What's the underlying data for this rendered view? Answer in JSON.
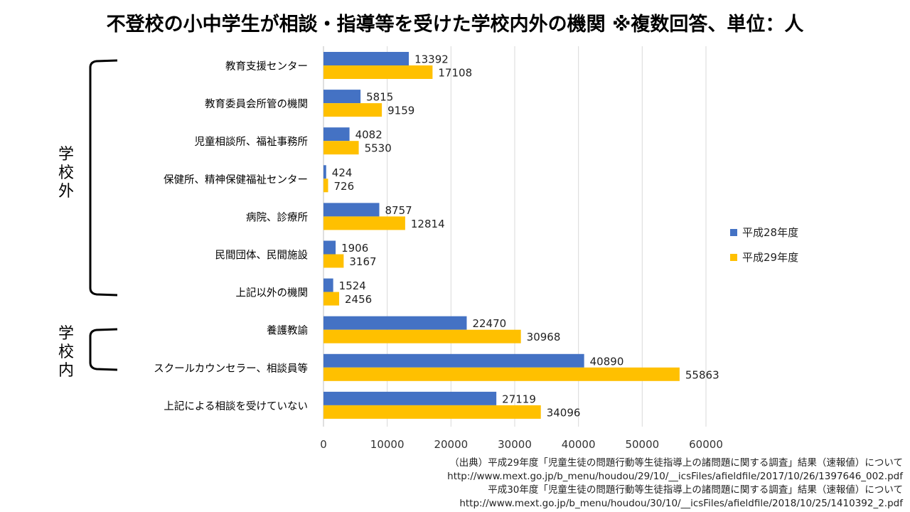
{
  "title": "不登校の小中学生が相談・指導等を受けた学校内外の機関 ※複数回答、単位：人",
  "chart_data": {
    "type": "bar",
    "orientation": "horizontal",
    "title": "不登校の小中学生が相談・指導等を受けた学校内外の機関 ※複数回答、単位：人",
    "xlabel": "",
    "ylabel": "",
    "xlim": [
      0,
      60000
    ],
    "xticks": [
      0,
      10000,
      20000,
      30000,
      40000,
      50000,
      60000
    ],
    "xtick_labels": [
      "0",
      "10000",
      "20000",
      "30000",
      "40000",
      "50000",
      "60000"
    ],
    "grid": "vertical",
    "legend_position": "right",
    "categories": [
      "教育支援センター",
      "教育委員会所管の機関",
      "児童相談所、福祉事務所",
      "保健所、精神保健福祉センター",
      "病院、診療所",
      "民間団体、民間施設",
      "上記以外の機関",
      "養護教諭",
      "スクールカウンセラー、相談員等",
      "上記による相談を受けていない"
    ],
    "series": [
      {
        "name": "平成28年度",
        "color": "#4472C4",
        "values": [
          13392,
          5815,
          4082,
          424,
          8757,
          1906,
          1524,
          22470,
          40890,
          27119
        ]
      },
      {
        "name": "平成29年度",
        "color": "#FFC000",
        "values": [
          17108,
          9159,
          5530,
          726,
          12814,
          3167,
          2456,
          30968,
          55863,
          34096
        ]
      }
    ],
    "groups": [
      {
        "label": "学校外",
        "chars": [
          "学",
          "校",
          "外"
        ],
        "categories_from": 0,
        "categories_to": 6
      },
      {
        "label": "学校内",
        "chars": [
          "学",
          "校",
          "内"
        ],
        "categories_from": 7,
        "categories_to": 8
      }
    ]
  },
  "source": [
    "（出典）平成29年度「児童生徒の問題行動等生徒指導上の諸問題に関する調査」結果（速報値）について",
    "http://www.mext.go.jp/b_menu/houdou/29/10/__icsFiles/afieldfile/2017/10/26/1397646_002.pdf",
    "平成30年度「児童生徒の問題行動等生徒指導上の諸問題に関する調査」結果（速報値）について",
    "http://www.mext.go.jp/b_menu/houdou/30/10/__icsFiles/afieldfile/2018/10/25/1410392_2.pdf"
  ]
}
